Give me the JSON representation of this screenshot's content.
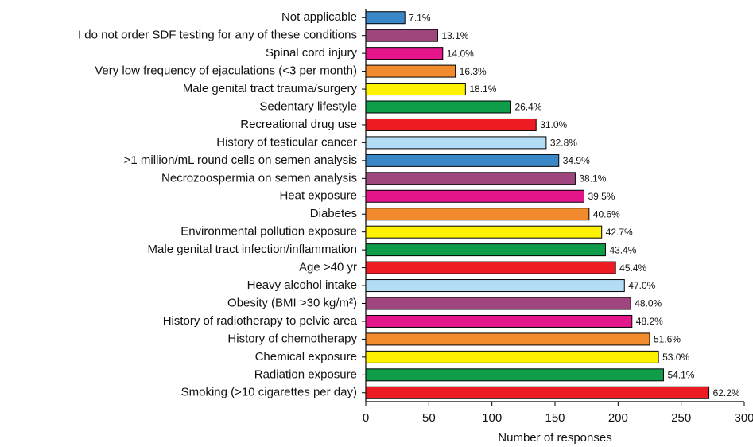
{
  "chart_data": {
    "type": "barh",
    "x_label": "Number of responses",
    "categories": [
      "Not applicable",
      "I do not order SDF testing for any of these conditions",
      "Spinal cord injury",
      "Very low frequency of ejaculations (<3 per month)",
      "Male genital tract trauma/surgery",
      "Sedentary lifestyle",
      "Recreational drug use",
      "History of testicular cancer",
      ">1 million/mL round cells on semen analysis",
      "Necrozoospermia on semen analysis",
      "Heat exposure",
      "Diabetes",
      "Environmental pollution exposure",
      "Male genital tract infection/inflammation",
      "Age >40 yr",
      "Heavy alcohol intake",
      "Obesity (BMI >30 kg/m²)",
      "History of radiotherapy to pelvic area",
      "History of chemotherapy",
      "Chemical exposure",
      "Radiation exposure",
      "Smoking (>10 cigarettes per day)"
    ],
    "values": [
      31,
      57,
      61,
      71,
      79,
      115,
      135,
      143,
      153,
      166,
      173,
      177,
      187,
      190,
      198,
      205,
      210,
      211,
      225,
      232,
      236,
      272
    ],
    "value_labels": [
      "7.1%",
      "13.1%",
      "14.0%",
      "16.3%",
      "18.1%",
      "26.4%",
      "31.0%",
      "32.8%",
      "34.9%",
      "38.1%",
      "39.5%",
      "40.6%",
      "42.7%",
      "43.4%",
      "45.4%",
      "47.0%",
      "48.0%",
      "48.2%",
      "51.6%",
      "53.0%",
      "54.1%",
      "62.2%"
    ],
    "colors": [
      "#3a87c8",
      "#a0467f",
      "#e5168c",
      "#f28a2e",
      "#fff200",
      "#0f9d4a",
      "#ed1c24",
      "#b3dcf5",
      "#3a87c8",
      "#a0467f",
      "#e5168c",
      "#f28a2e",
      "#fff200",
      "#0f9d4a",
      "#ed1c24",
      "#b3dcf5",
      "#a0467f",
      "#e5168c",
      "#f28a2e",
      "#fff200",
      "#0f9d4a",
      "#ed1c24"
    ],
    "xlim": [
      0,
      300
    ],
    "xticks": [
      0,
      50,
      100,
      150,
      200,
      250,
      300
    ]
  }
}
